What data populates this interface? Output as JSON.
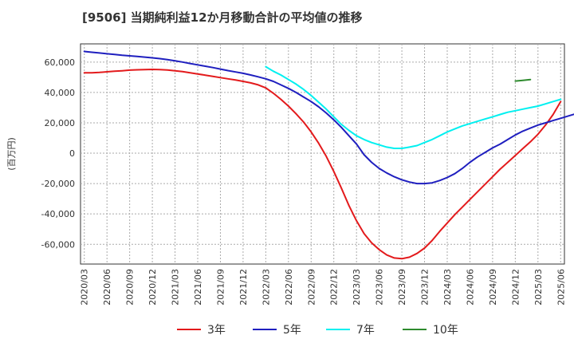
{
  "chart_data": {
    "type": "line",
    "title": "[9506]  当期純利益12か月移動合計の平均値の推移",
    "ylabel": "(百万円)",
    "xlabel": "",
    "ylim": [
      -73000,
      72000
    ],
    "y_ticks": [
      60000,
      40000,
      20000,
      0,
      -20000,
      -40000,
      -60000
    ],
    "y_tick_labels": [
      "60,000",
      "40,000",
      "20,000",
      "0",
      "-20,000",
      "-40,000",
      "-60,000"
    ],
    "x_tick_labels": [
      "2020/03",
      "2020/06",
      "2020/09",
      "2020/12",
      "2021/03",
      "2021/06",
      "2021/09",
      "2021/12",
      "2022/03",
      "2022/06",
      "2022/09",
      "2022/12",
      "2023/03",
      "2023/06",
      "2023/09",
      "2023/12",
      "2024/03",
      "2024/06",
      "2024/09",
      "2024/12",
      "2025/03",
      "2025/06"
    ],
    "grid": true,
    "legend_position": "bottom",
    "series": [
      {
        "name": "3年",
        "color": "#e31a1c",
        "start": "2020/03",
        "values": [
          53000,
          53000,
          53200,
          53600,
          54000,
          54300,
          54700,
          54900,
          55100,
          55200,
          55100,
          54800,
          54300,
          53700,
          53000,
          52200,
          51400,
          50600,
          49800,
          49000,
          48200,
          47300,
          46300,
          45000,
          43000,
          39500,
          35500,
          31000,
          26000,
          20500,
          14000,
          6500,
          -2000,
          -12000,
          -23000,
          -34500,
          -44500,
          -53000,
          -59000,
          -63500,
          -67000,
          -69000,
          -69500,
          -68500,
          -66000,
          -62500,
          -57500,
          -51500,
          -46000,
          -40500,
          -35500,
          -30500,
          -25500,
          -20500,
          -15500,
          -10500,
          -6000,
          -1500,
          3000,
          7500,
          12500,
          18500,
          25500,
          34000
        ]
      },
      {
        "name": "5年",
        "color": "#1f1fbf",
        "start": "2020/03",
        "values": [
          67000,
          66500,
          66000,
          65500,
          65000,
          64500,
          64100,
          63700,
          63300,
          62800,
          62300,
          61600,
          60800,
          60000,
          59100,
          58200,
          57300,
          56400,
          55400,
          54400,
          53500,
          52600,
          51500,
          50300,
          49000,
          47300,
          45000,
          42700,
          40000,
          37000,
          34000,
          30500,
          26500,
          22000,
          17000,
          11500,
          6000,
          -1000,
          -6000,
          -10000,
          -13000,
          -15500,
          -17500,
          -19000,
          -20000,
          -20000,
          -19500,
          -18000,
          -16000,
          -13500,
          -10000,
          -6000,
          -2500,
          500,
          3500,
          6000,
          9000,
          12000,
          14500,
          16500,
          18500,
          20000,
          21500,
          23000,
          24500,
          26000,
          28000,
          29500
        ]
      },
      {
        "name": "7年",
        "color": "#00f0f0",
        "start": "2022/03",
        "values": [
          57000,
          54000,
          51500,
          48500,
          45500,
          42000,
          38000,
          33500,
          29000,
          24000,
          19000,
          15000,
          11500,
          9000,
          7000,
          5500,
          4000,
          3200,
          3200,
          4000,
          5000,
          7000,
          9000,
          11500,
          14000,
          16000,
          18000,
          19500,
          21000,
          22500,
          24000,
          25500,
          27000,
          28000,
          29000,
          30000,
          31000,
          32500,
          34000,
          35500
        ]
      },
      {
        "name": "10年",
        "color": "#2e8b2e",
        "start": "2024/12",
        "values": [
          47500,
          48000,
          48500
        ]
      }
    ]
  }
}
